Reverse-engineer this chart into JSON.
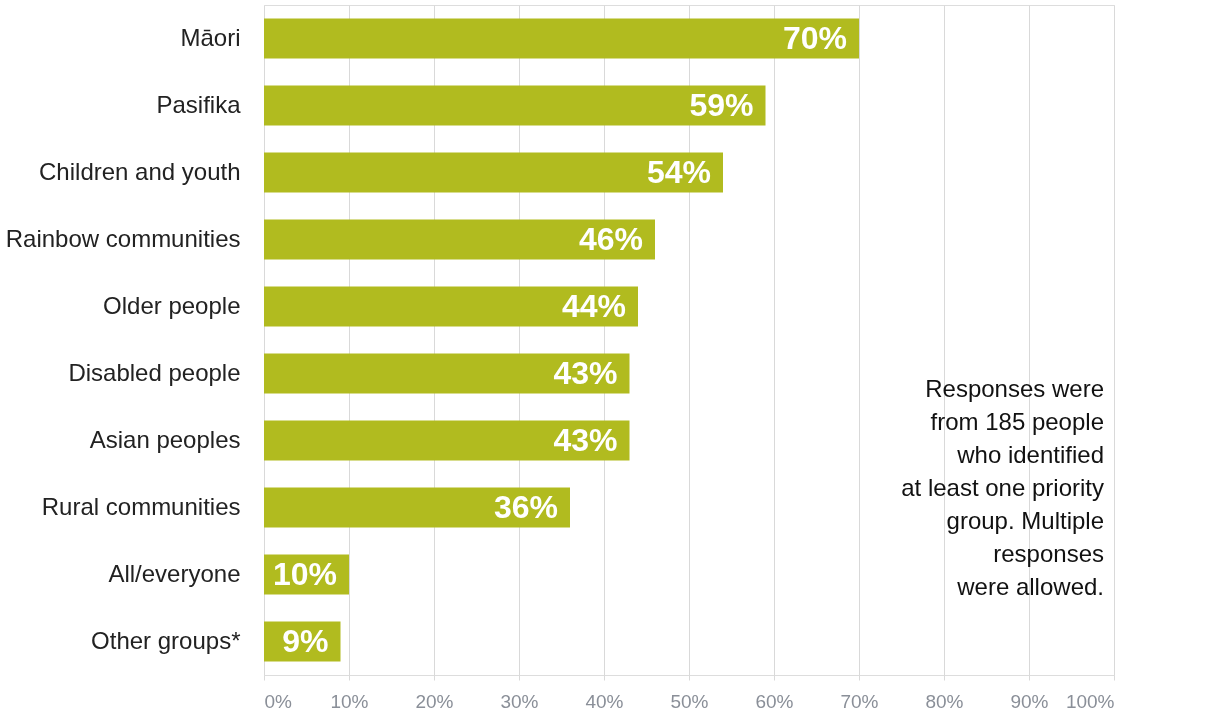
{
  "chart_data": {
    "type": "bar",
    "orientation": "horizontal",
    "categories": [
      "Māori",
      "Pasifika",
      "Children and youth",
      "Rainbow communities",
      "Older people",
      "Disabled people",
      "Asian peoples",
      "Rural communities",
      "All/everyone",
      "Other groups*"
    ],
    "values": [
      70,
      59,
      54,
      46,
      44,
      43,
      43,
      36,
      10,
      9
    ],
    "value_labels": [
      "70%",
      "59%",
      "54%",
      "46%",
      "44%",
      "43%",
      "43%",
      "36%",
      "10%",
      "9%"
    ],
    "color": "#b1bb1f",
    "xlim": [
      0,
      100
    ],
    "xticks": [
      {
        "value": 0,
        "label": "0%"
      },
      {
        "value": 10,
        "label": "10%"
      },
      {
        "value": 20,
        "label": "20%"
      },
      {
        "value": 30,
        "label": "30%"
      },
      {
        "value": 40,
        "label": "40%"
      },
      {
        "value": 50,
        "label": "50%"
      },
      {
        "value": 60,
        "label": "60%"
      },
      {
        "value": 70,
        "label": "70%"
      },
      {
        "value": 80,
        "label": "80%"
      },
      {
        "value": 90,
        "label": "90%"
      },
      {
        "value": 100,
        "label": "100%"
      }
    ],
    "grid": "x",
    "annotations": [
      "Responses were\nfrom 185 people\nwho identified\nat least one priority\ngroup. Multiple\nresponses\nwere allowed."
    ]
  }
}
